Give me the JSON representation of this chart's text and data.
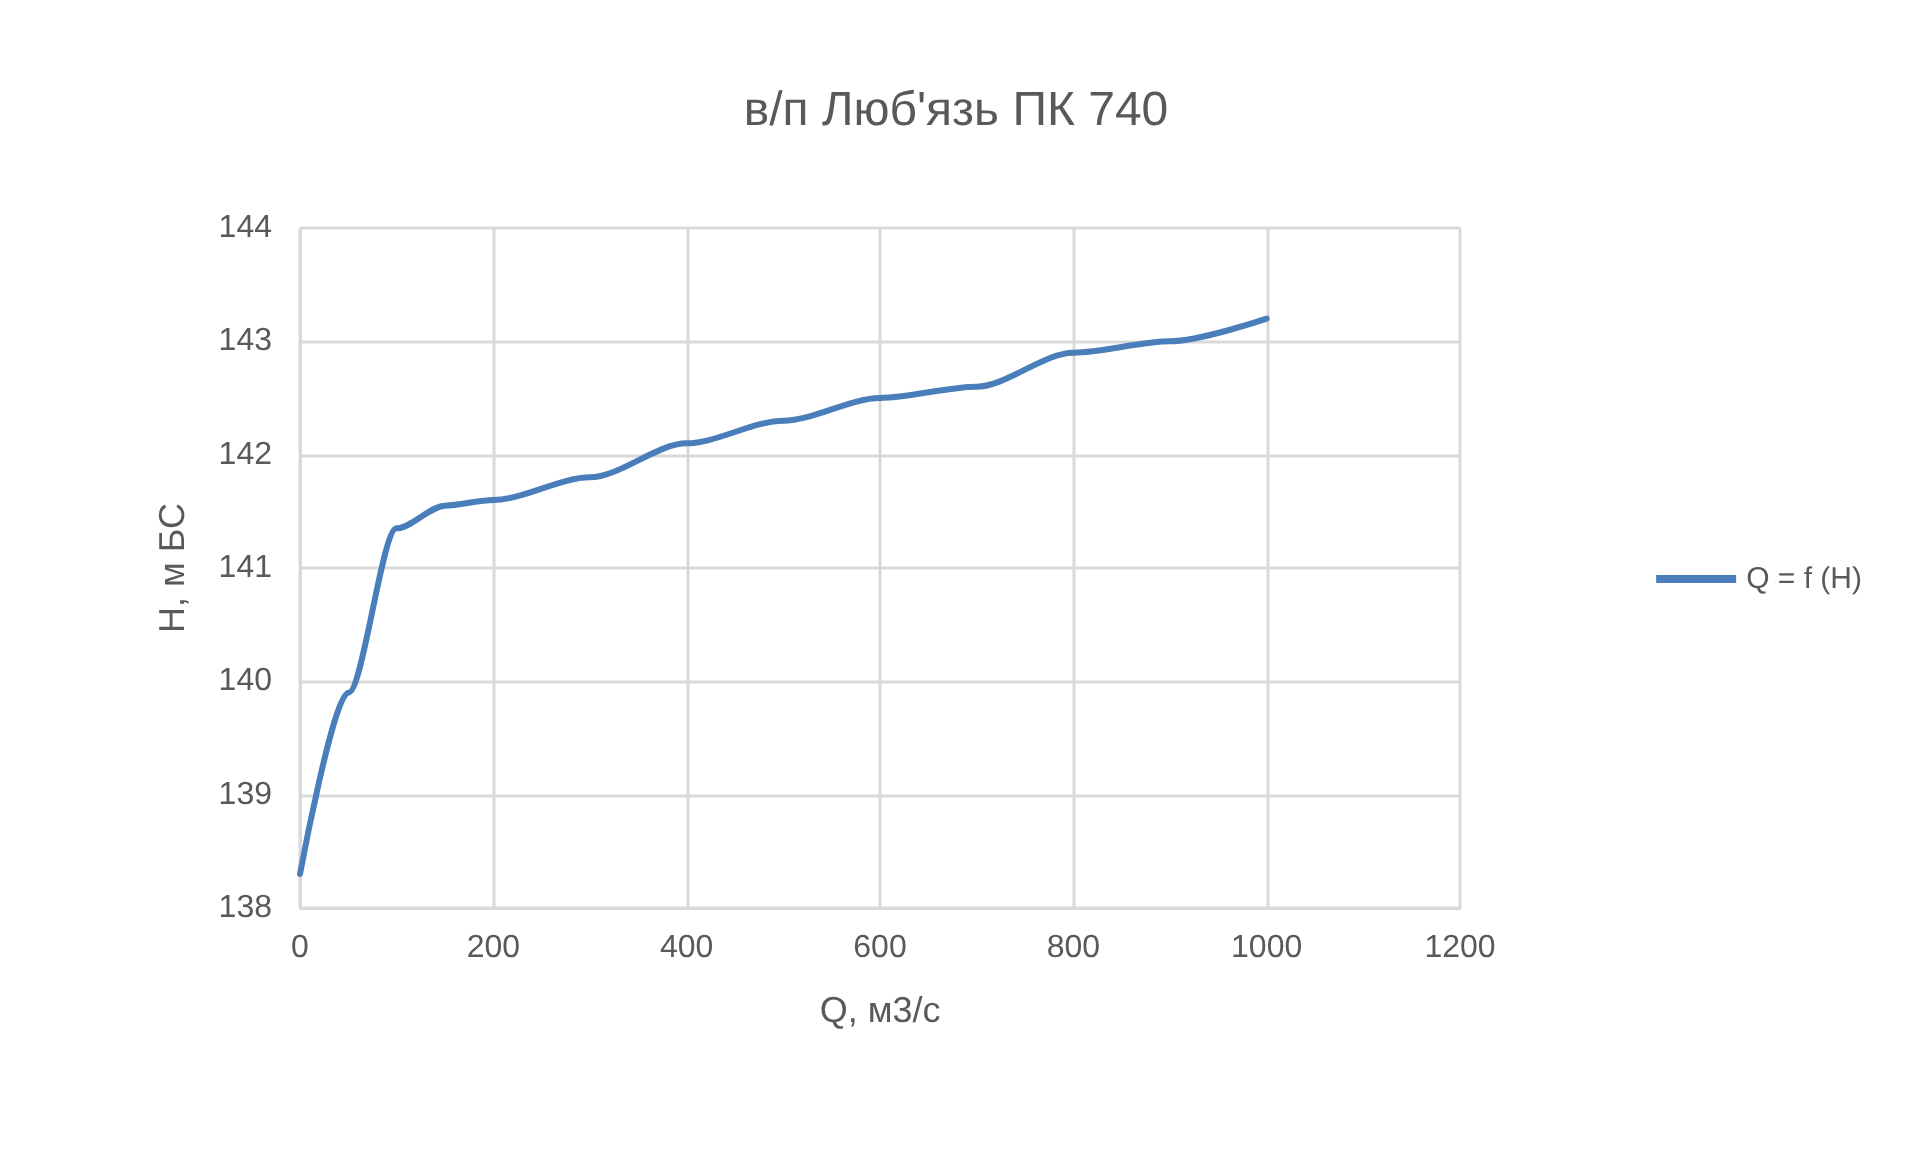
{
  "chart_data": {
    "type": "line",
    "title": "в/п Люб'язь ПК 740",
    "xlabel": "Q, м3/с",
    "ylabel": "H, м БС",
    "x": [
      0,
      50,
      100,
      150,
      200,
      300,
      400,
      500,
      600,
      700,
      800,
      900,
      1000
    ],
    "series": [
      {
        "name": "Q = f (H)",
        "color": "#4a7ebb",
        "values": [
          138.3,
          139.9,
          141.35,
          141.55,
          141.6,
          141.8,
          142.1,
          142.3,
          142.5,
          142.6,
          142.9,
          143.0,
          143.2
        ]
      }
    ],
    "xlim": [
      0,
      1200
    ],
    "xticks": [
      0,
      200,
      400,
      600,
      800,
      1000,
      1200
    ],
    "ylim": [
      138,
      144
    ],
    "yticks": [
      138,
      139,
      140,
      141,
      142,
      143,
      144
    ],
    "grid": true,
    "legend": "right",
    "marker": "none",
    "line_style": "solid"
  }
}
